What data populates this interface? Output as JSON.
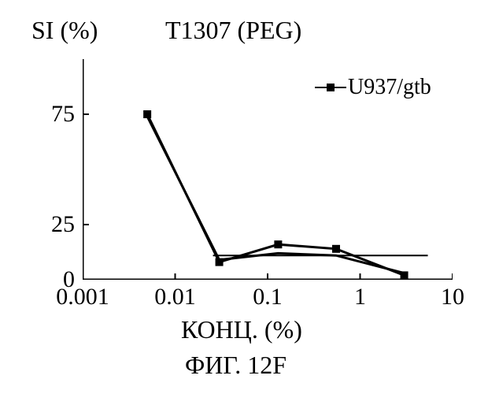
{
  "chart": {
    "type": "line",
    "title": "T1307 (PEG)",
    "ylabel": "SI (%)",
    "xlabel": "КОНЦ. (%)",
    "caption": "ФИГ. 12F",
    "background_color": "#ffffff",
    "axis_color": "#000000",
    "axis_width": 3,
    "xscale": "log",
    "xlim": [
      0.001,
      10
    ],
    "ylim": [
      0,
      100
    ],
    "xticks": [
      0.001,
      0.01,
      0.1,
      1,
      10
    ],
    "xtick_labels": [
      "0.001",
      "0.01",
      "0.1",
      "1",
      "10"
    ],
    "yticks": [
      0,
      25,
      75
    ],
    "ytick_labels": [
      "0",
      "25",
      "75"
    ],
    "title_fontsize": 32,
    "label_fontsize": 32,
    "tick_fontsize": 30,
    "text_color": "#000000",
    "baseline_y": 11,
    "baseline_color": "#000000",
    "baseline_width": 2,
    "legend": {
      "label": "U937/gtb",
      "marker": "square",
      "marker_color": "#000000",
      "line_color": "#000000",
      "fontsize": 28
    },
    "series": [
      {
        "name": "U937/gtb",
        "marker": "square",
        "marker_size": 10,
        "marker_color": "#000000",
        "line1_color": "#000000",
        "line1_width": 3,
        "line2_color": "#000000",
        "line2_width": 3,
        "x": [
          0.005,
          0.03,
          0.13,
          0.55,
          3.0
        ],
        "y": [
          75,
          8,
          16,
          14,
          2
        ],
        "y2": [
          74,
          9,
          12,
          11,
          3
        ]
      }
    ]
  }
}
